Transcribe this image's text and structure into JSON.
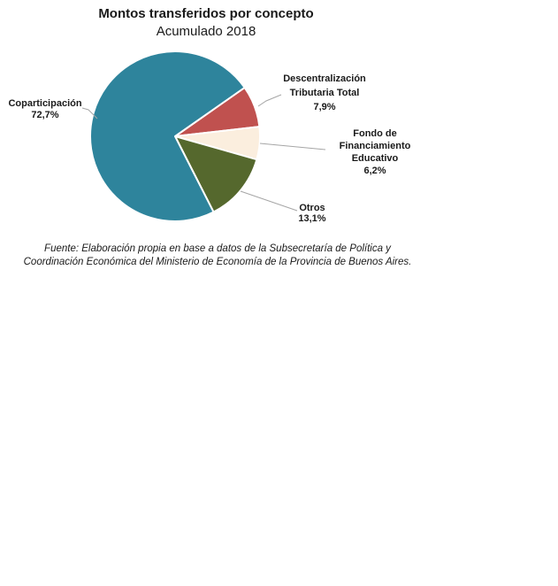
{
  "title": "Montos transferidos por concepto",
  "subtitle": "Acumulado 2018",
  "chart_data": {
    "type": "pie",
    "title": "Montos transferidos por concepto",
    "subtitle": "Acumulado 2018",
    "start_angle_deg": 55,
    "legend_position": "callout-labels",
    "slices": [
      {
        "id": "descentralizacion",
        "label": "Descentralización Tributaria Total",
        "value": 7.9,
        "pct_label": "7,9%",
        "color": "#C0514F"
      },
      {
        "id": "fondo",
        "label": "Fondo de Financiamiento Educativo",
        "value": 6.2,
        "pct_label": "6,2%",
        "color": "#FBEEDE"
      },
      {
        "id": "otros",
        "label": "Otros",
        "value": 13.1,
        "pct_label": "13,1%",
        "color": "#55682D"
      },
      {
        "id": "coparticipacion",
        "label": "Coparticipación",
        "value": 72.7,
        "pct_label": "72,7%",
        "color": "#2E849C"
      }
    ]
  },
  "callouts": {
    "coparticipacion": {
      "lines": [
        "Coparticipación",
        "72,7%"
      ]
    },
    "descentralizacion": {
      "lines": [
        "Descentralización",
        "Tributaria Total",
        "7,9%"
      ]
    },
    "fondo": {
      "lines": [
        "Fondo de",
        "Financiamiento",
        "Educativo",
        "6,2%"
      ]
    },
    "otros": {
      "lines": [
        "Otros",
        "13,1%"
      ]
    }
  },
  "source": {
    "line1": "Fuente: Elaboración propia en base a datos de la Subsecretaría de Política y",
    "line2": "Coordinación Económica del Ministerio de Economía de la Provincia de Buenos Aires."
  },
  "colors": {
    "leader_line": "#A6A6A6",
    "slice_separator": "#FFFFFF"
  }
}
